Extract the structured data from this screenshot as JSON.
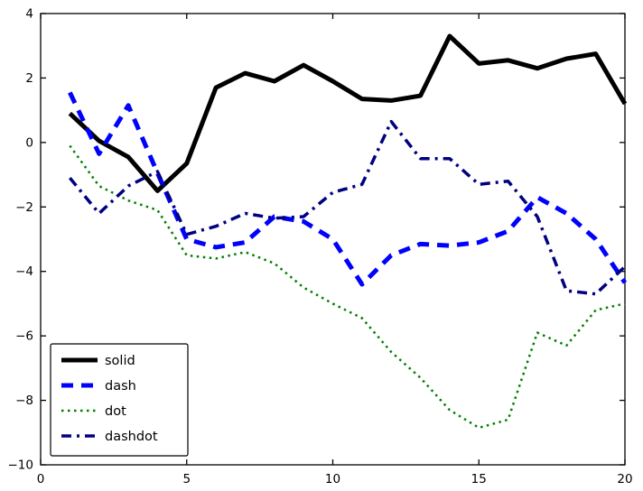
{
  "figure": {
    "background": "#ffffff",
    "frame_color": "#000000"
  },
  "chart_data": {
    "type": "line",
    "title": "",
    "xlabel": "",
    "ylabel": "",
    "xlim": [
      0,
      20
    ],
    "ylim": [
      -10,
      4
    ],
    "x_ticks": [
      0,
      5,
      10,
      15,
      20
    ],
    "y_ticks": [
      -10,
      -8,
      -6,
      -4,
      -2,
      0,
      2,
      4
    ],
    "grid": false,
    "legend_position": "lower left",
    "x": [
      1,
      2,
      3,
      4,
      5,
      6,
      7,
      8,
      9,
      10,
      11,
      12,
      13,
      14,
      15,
      16,
      17,
      18,
      19,
      20
    ],
    "series": [
      {
        "name": "solid",
        "style": "solid",
        "color": "#000000",
        "width": 5,
        "values": [
          0.9,
          0.05,
          -0.45,
          -1.5,
          -0.65,
          1.7,
          2.15,
          1.9,
          2.4,
          1.9,
          1.35,
          1.3,
          1.45,
          3.3,
          2.45,
          2.55,
          2.3,
          2.6,
          2.75,
          1.2
        ]
      },
      {
        "name": "dash",
        "style": "dash",
        "color": "#0000ff",
        "width": 5,
        "values": [
          1.55,
          -0.35,
          1.15,
          -0.95,
          -3.0,
          -3.25,
          -3.1,
          -2.3,
          -2.45,
          -3.0,
          -4.4,
          -3.5,
          -3.15,
          -3.2,
          -3.1,
          -2.75,
          -1.7,
          -2.2,
          -3.0,
          -4.35
        ]
      },
      {
        "name": "dot",
        "style": "dot",
        "color": "#007f00",
        "width": 2.5,
        "values": [
          -0.1,
          -1.35,
          -1.8,
          -2.1,
          -3.5,
          -3.6,
          -3.4,
          -3.75,
          -4.5,
          -5.0,
          -5.45,
          -6.5,
          -7.3,
          -8.3,
          -8.85,
          -8.6,
          -5.9,
          -6.3,
          -5.2,
          -5.0
        ]
      },
      {
        "name": "dashdot",
        "style": "dashdot",
        "color": "#000080",
        "width": 3.5,
        "values": [
          -1.1,
          -2.2,
          -1.35,
          -0.9,
          -2.85,
          -2.6,
          -2.2,
          -2.35,
          -2.3,
          -1.55,
          -1.3,
          0.65,
          -0.5,
          -0.5,
          -1.3,
          -1.2,
          -2.3,
          -4.6,
          -4.7,
          -3.85
        ]
      }
    ]
  }
}
